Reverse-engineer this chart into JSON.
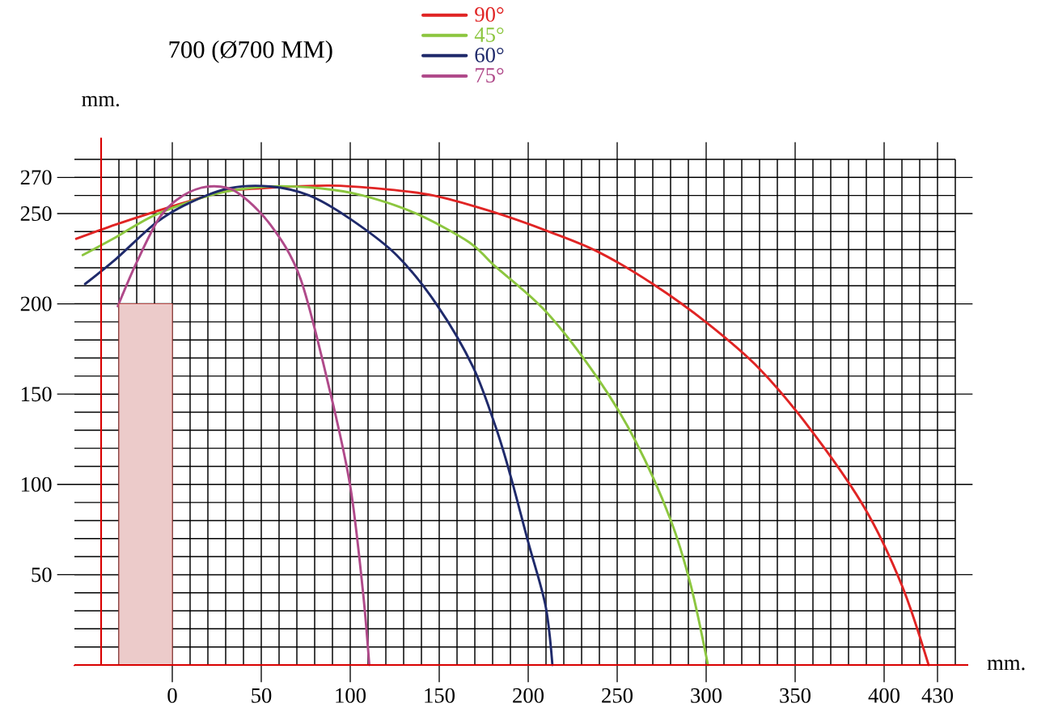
{
  "chart_data": {
    "type": "line",
    "title": "700 (Ø700 MM)",
    "xlabel": "mm.",
    "ylabel": "mm.",
    "xlim": [
      -55,
      440
    ],
    "ylim": [
      0,
      280
    ],
    "xticks": [
      {
        "value": -40,
        "label": null
      },
      {
        "value": -30,
        "label": null
      },
      {
        "value": -20,
        "label": null
      },
      {
        "value": -10,
        "label": null
      },
      0,
      {
        "value": 10,
        "label": null
      },
      {
        "value": 20,
        "label": null
      },
      {
        "value": 30,
        "label": null
      },
      {
        "value": 40,
        "label": null
      },
      50,
      {
        "value": 60,
        "label": null
      },
      {
        "value": 70,
        "label": null
      },
      {
        "value": 80,
        "label": null
      },
      {
        "value": 90,
        "label": null
      },
      100,
      {
        "value": 110,
        "label": null
      },
      {
        "value": 120,
        "label": null
      },
      {
        "value": 130,
        "label": null
      },
      {
        "value": 140,
        "label": null
      },
      150,
      {
        "value": 160,
        "label": null
      },
      {
        "value": 170,
        "label": null
      },
      {
        "value": 180,
        "label": null
      },
      {
        "value": 190,
        "label": null
      },
      200,
      {
        "value": 210,
        "label": null
      },
      {
        "value": 220,
        "label": null
      },
      {
        "value": 230,
        "label": null
      },
      {
        "value": 240,
        "label": null
      },
      250,
      {
        "value": 260,
        "label": null
      },
      {
        "value": 270,
        "label": null
      },
      {
        "value": 280,
        "label": null
      },
      {
        "value": 290,
        "label": null
      },
      300,
      {
        "value": 310,
        "label": null
      },
      {
        "value": 320,
        "label": null
      },
      {
        "value": 330,
        "label": null
      },
      {
        "value": 340,
        "label": null
      },
      350,
      {
        "value": 360,
        "label": null
      },
      {
        "value": 370,
        "label": null
      },
      {
        "value": 380,
        "label": null
      },
      {
        "value": 390,
        "label": null
      },
      400,
      {
        "value": 410,
        "label": null
      },
      {
        "value": 420,
        "label": null
      },
      430,
      {
        "value": 440,
        "label": null
      }
    ],
    "yticks": [
      {
        "value": 0,
        "label": null
      },
      {
        "value": 10,
        "label": null
      },
      {
        "value": 20,
        "label": null
      },
      {
        "value": 30,
        "label": null
      },
      {
        "value": 40,
        "label": null
      },
      50,
      {
        "value": 60,
        "label": null
      },
      {
        "value": 70,
        "label": null
      },
      {
        "value": 80,
        "label": null
      },
      {
        "value": 90,
        "label": null
      },
      100,
      {
        "value": 110,
        "label": null
      },
      {
        "value": 120,
        "label": null
      },
      {
        "value": 130,
        "label": null
      },
      {
        "value": 140,
        "label": null
      },
      150,
      {
        "value": 160,
        "label": null
      },
      {
        "value": 170,
        "label": null
      },
      {
        "value": 180,
        "label": null
      },
      {
        "value": 190,
        "label": null
      },
      200,
      {
        "value": 210,
        "label": null
      },
      {
        "value": 220,
        "label": null
      },
      {
        "value": 230,
        "label": null
      },
      {
        "value": 240,
        "label": null
      },
      250,
      {
        "value": 260,
        "label": null
      },
      270,
      {
        "value": 280,
        "label": null
      }
    ],
    "grid": true,
    "legend": "top",
    "line_style": "solid",
    "marker": "none",
    "series": [
      {
        "name": "90°",
        "color": "#e02424",
        "x": [
          -54,
          -31.5,
          0,
          28.5,
          50,
          88.5,
          118.6,
          146.7,
          180.5,
          211.7,
          238.9,
          270,
          301,
          330,
          359,
          389,
          410,
          425
        ],
        "values": [
          236,
          244,
          254,
          262,
          264,
          265.5,
          263.6,
          260,
          250.8,
          240,
          229,
          211,
          189,
          164,
          130,
          87,
          44,
          0
        ]
      },
      {
        "name": "45°",
        "color": "#8cc63f",
        "x": [
          -50.3,
          -31.5,
          -9,
          24.8,
          54.8,
          83,
          107,
          137,
          167,
          180.5,
          209.7,
          238.9,
          260.3,
          279.8,
          291.4,
          301
        ],
        "values": [
          227,
          237,
          249.5,
          261,
          265,
          264,
          260,
          250,
          234,
          221.6,
          196,
          159,
          124,
          81,
          44,
          0
        ]
      },
      {
        "name": "60°",
        "color": "#1f2a6b",
        "x": [
          -49,
          -31.5,
          -9,
          9.8,
          32,
          55,
          77,
          100,
          126,
          149,
          169,
          182,
          190,
          200,
          209.7,
          213.6
        ],
        "values": [
          211,
          225,
          245,
          256,
          264,
          265,
          260,
          247,
          227,
          199,
          165,
          131,
          105,
          68,
          33,
          0
        ]
      },
      {
        "name": "75°",
        "color": "#b04a8a",
        "x": [
          -30.6,
          -20,
          -7,
          6,
          21,
          36,
          55,
          72,
          88.5,
          100,
          107,
          110.7
        ],
        "values": [
          198.7,
          223,
          248,
          260,
          265,
          262,
          244,
          214,
          152,
          99,
          42,
          0
        ]
      },
      {
        "type": "area",
        "color": "#c0504d",
        "x": [
          -30,
          0
        ],
        "values": [
          200,
          200
        ]
      }
    ]
  }
}
